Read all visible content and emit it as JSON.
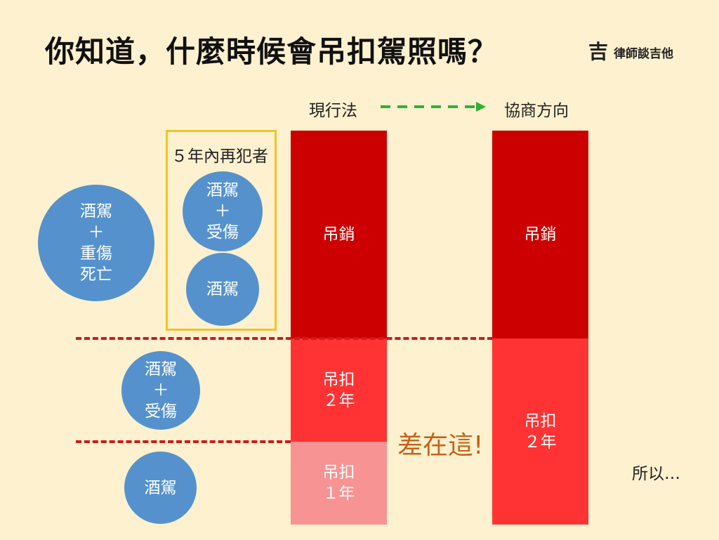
{
  "title": "你知道，什麼時候會吊扣駕照嗎？",
  "brand": {
    "logo": "吉",
    "name": "律師談吉他"
  },
  "columns": {
    "current_law": "現行法",
    "negotiation": "協商方向"
  },
  "repeat_offender_label": "５年內再犯者",
  "left_circles": {
    "death_injury": "酒駕\n＋\n重傷\n死亡",
    "injury": "酒駕\n＋\n受傷",
    "drunk": "酒駕"
  },
  "repeat_circles": {
    "injury": "酒駕\n＋\n受傷",
    "drunk": "酒駕"
  },
  "current_bars": {
    "revoke": "吊銷",
    "suspend_2y": "吊扣\n２年",
    "suspend_1y": "吊扣\n１年"
  },
  "negotiation_bars": {
    "revoke": "吊銷",
    "suspend_2y": "吊扣\n２年"
  },
  "difference_label": "差在這!",
  "so_label": "所以…",
  "colors": {
    "background": "#fdf1cf",
    "circle": "#5592cd",
    "dark_red": "#cc0000",
    "red": "#ff3333",
    "pink": "#f79393",
    "box_border": "#f4c22b",
    "arrow": "#2eb135",
    "dash": "#cc1b1b"
  }
}
